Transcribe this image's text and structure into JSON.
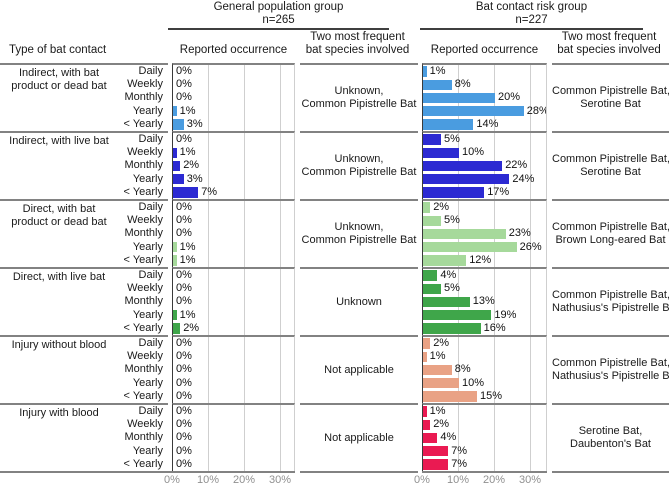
{
  "chart_data": {
    "type": "bar",
    "orientation": "horizontal",
    "unit": "%",
    "contact_type_header": "Type of bat contact",
    "frequencies": [
      "Daily",
      "Weekly",
      "Monthly",
      "Yearly",
      "< Yearly"
    ],
    "x_axis": {
      "ticks": [
        "0%",
        "10%",
        "20%",
        "30%"
      ],
      "tick_values": [
        0,
        10,
        20,
        30
      ],
      "xlim": [
        0,
        34
      ],
      "grid": true
    },
    "groups": [
      {
        "title": "General population group",
        "n": "n=265",
        "occurrence_header": "Reported occurrence",
        "species_header_lines": [
          "Two most frequent",
          "bat species involved"
        ]
      },
      {
        "title": "Bat contact risk group",
        "n": "n=227",
        "occurrence_header": "Reported occurrence",
        "species_header_lines": [
          "Two most frequent",
          "bat species involved"
        ]
      }
    ],
    "blocks": [
      {
        "contact_type_lines": [
          "Indirect, with bat",
          "product or dead bat"
        ],
        "color": "#4a9ce0",
        "general": {
          "values": [
            0,
            0,
            0,
            1,
            3
          ],
          "species_lines": [
            "Unknown,",
            "Common Pipistrelle Bat"
          ]
        },
        "risk": {
          "values": [
            1,
            8,
            20,
            28,
            14
          ],
          "species_lines": [
            "Common Pipistrelle Bat,",
            "Serotine Bat"
          ]
        }
      },
      {
        "contact_type_lines": [
          "Indirect, with live bat"
        ],
        "color": "#2c2ad2",
        "general": {
          "values": [
            0,
            1,
            2,
            3,
            7
          ],
          "species_lines": [
            "Unknown,",
            "Common Pipistrelle Bat"
          ]
        },
        "risk": {
          "values": [
            5,
            10,
            22,
            24,
            17
          ],
          "species_lines": [
            "Common Pipistrelle Bat,",
            "Serotine Bat"
          ]
        }
      },
      {
        "contact_type_lines": [
          "Direct, with bat",
          "product or dead bat"
        ],
        "color": "#a6d99b",
        "general": {
          "values": [
            0,
            0,
            0,
            1,
            1
          ],
          "species_lines": [
            "Unknown,",
            "Common Pipistrelle Bat"
          ]
        },
        "risk": {
          "values": [
            2,
            5,
            23,
            26,
            12
          ],
          "species_lines": [
            "Common Pipistrelle Bat,",
            "Brown Long-eared Bat"
          ]
        }
      },
      {
        "contact_type_lines": [
          "Direct, with live bat"
        ],
        "color": "#3fa64a",
        "general": {
          "values": [
            0,
            0,
            0,
            1,
            2
          ],
          "species_lines": [
            "Unknown"
          ]
        },
        "risk": {
          "values": [
            4,
            5,
            13,
            19,
            16
          ],
          "species_lines": [
            "Common Pipistrelle Bat,",
            "Nathusius's Pipistrelle Bat"
          ]
        }
      },
      {
        "contact_type_lines": [
          "Injury without blood"
        ],
        "color": "#e9a285",
        "general": {
          "values": [
            0,
            0,
            0,
            0,
            0
          ],
          "species_lines": [
            "Not applicable"
          ]
        },
        "risk": {
          "values": [
            2,
            1,
            8,
            10,
            15
          ],
          "species_lines": [
            "Common Pipistrelle Bat,",
            "Nathusius's Pipistrelle Bat"
          ]
        }
      },
      {
        "contact_type_lines": [
          "Injury with blood"
        ],
        "color": "#ea1a52",
        "general": {
          "values": [
            0,
            0,
            0,
            0,
            0
          ],
          "species_lines": [
            "Not applicable"
          ]
        },
        "risk": {
          "values": [
            1,
            2,
            4,
            7,
            7
          ],
          "species_lines": [
            "Serotine Bat,",
            "Daubenton's Bat"
          ]
        }
      }
    ],
    "colors": {
      "grid_line": "#cfcfcf",
      "block_separator": "#828282",
      "axis_line": "#3a3a3a",
      "tick_label": "#909090"
    }
  }
}
